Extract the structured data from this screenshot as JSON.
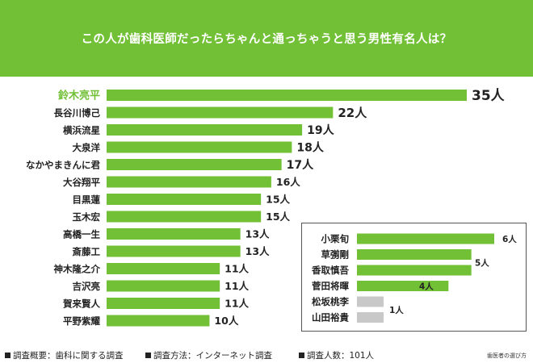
{
  "header": {
    "title": "この人が歯科医師だったらちゃんと通っちゃうと思う男性有名人は？"
  },
  "colors": {
    "accent": "#72c036",
    "bar": "#72c036",
    "muted_bar": "#c8c8c8"
  },
  "chart_data": [
    {
      "type": "bar",
      "orientation": "horizontal",
      "value_suffix": "人",
      "categories": [
        "鈴木亮平",
        "長谷川博己",
        "横浜流星",
        "大泉洋",
        "なかやまきんに君",
        "大谷翔平",
        "目黒蓮",
        "玉木宏",
        "高橋一生",
        "斎藤工",
        "神木隆之介",
        "吉沢亮",
        "賀来賢人",
        "平野紫耀"
      ],
      "values": [
        35,
        22,
        19,
        18,
        17,
        16,
        15,
        15,
        13,
        13,
        11,
        11,
        11,
        10
      ],
      "highlight_index": 0,
      "xlim": [
        0,
        35
      ]
    },
    {
      "type": "bar",
      "orientation": "horizontal",
      "value_suffix": "人",
      "categories": [
        "小栗旬",
        "草彅剛",
        "香取慎吾",
        "菅田将暉",
        "松坂桃李",
        "山田裕貴"
      ],
      "values": [
        6,
        5,
        5,
        4,
        1,
        1
      ],
      "group_labels": [
        {
          "text": "6人",
          "rows": [
            0
          ]
        },
        {
          "text": "5人",
          "rows": [
            1,
            2
          ]
        },
        {
          "text": "4人",
          "rows": [
            3
          ]
        },
        {
          "text": "1人",
          "rows": [
            4,
            5
          ]
        }
      ],
      "xlim": [
        0,
        6
      ]
    }
  ],
  "footer": {
    "notes": [
      "調査概要：歯科に関する調査",
      "調査方法：インターネット調査",
      "調査人数：101人"
    ],
    "credit": "歯医者の選び方"
  }
}
